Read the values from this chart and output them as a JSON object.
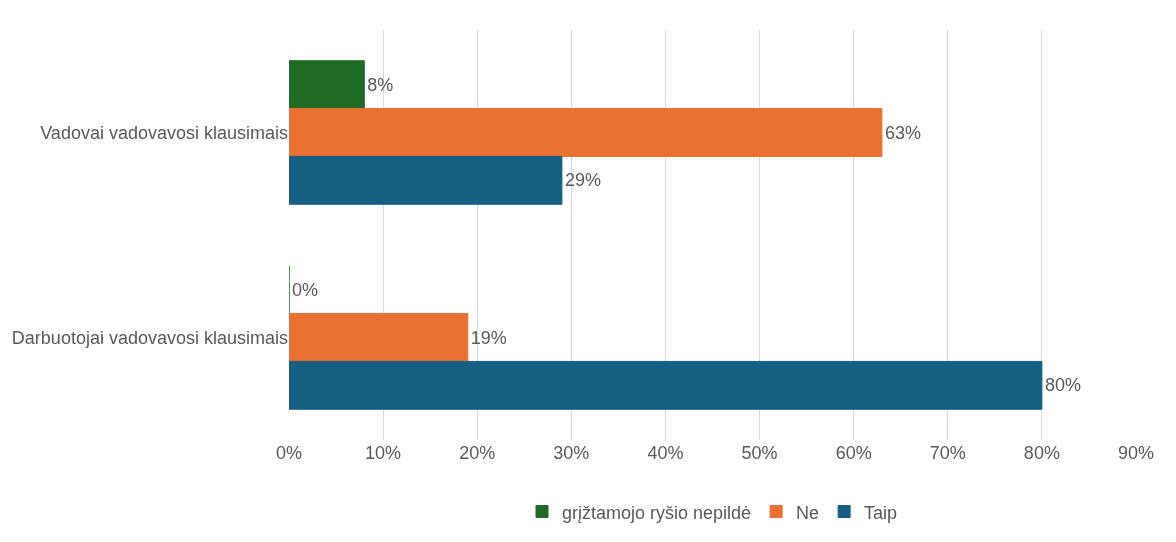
{
  "chart_data": {
    "type": "bar",
    "orientation": "horizontal",
    "categories": [
      "Vadovai vadovavosi klausimais",
      "Darbuotojai vadovavosi klausimais"
    ],
    "series": [
      {
        "name": "grįžtamojo ryšio nepildė",
        "color": "#1e6b24",
        "values": [
          8,
          0
        ],
        "value_labels": [
          "8%",
          "0%"
        ]
      },
      {
        "name": "Ne",
        "color": "#e97132",
        "values": [
          63,
          19
        ],
        "value_labels": [
          "63%",
          "19%"
        ]
      },
      {
        "name": "Taip",
        "color": "#156082",
        "values": [
          29,
          80
        ],
        "value_labels": [
          "29%",
          "80%"
        ]
      }
    ],
    "xlim": [
      0,
      90
    ],
    "xticks": [
      {
        "value": 0,
        "label": "0%"
      },
      {
        "value": 10,
        "label": "10%"
      },
      {
        "value": 20,
        "label": "20%"
      },
      {
        "value": 30,
        "label": "30%"
      },
      {
        "value": 40,
        "label": "40%"
      },
      {
        "value": 50,
        "label": "50%"
      },
      {
        "value": 60,
        "label": "60%"
      },
      {
        "value": 70,
        "label": "70%"
      },
      {
        "value": 80,
        "label": "80%"
      },
      {
        "value": 90,
        "label": "90%"
      }
    ],
    "grid": "x",
    "legend": "bottom"
  }
}
